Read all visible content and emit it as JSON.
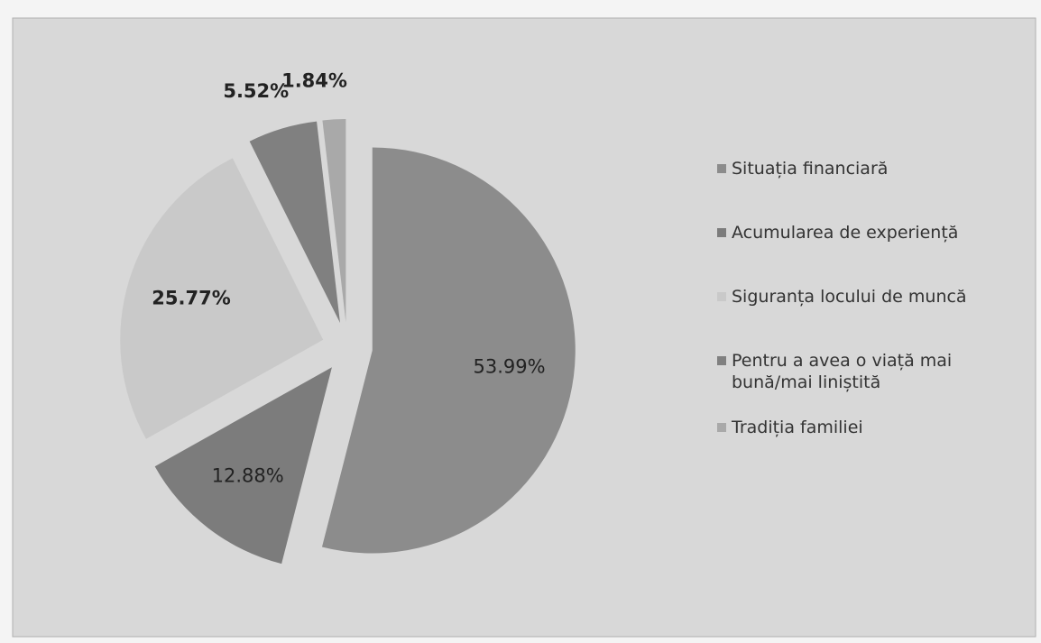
{
  "chart_data": {
    "type": "pie",
    "categories": [
      "Situația financiară",
      "Acumularea de experiență",
      "Siguranța locului de muncă",
      "Pentru a avea o viață mai bună/mai liniștită",
      "Tradiția familiei"
    ],
    "values": [
      53.99,
      12.88,
      25.77,
      5.52,
      1.84
    ],
    "value_labels": [
      "53.99%",
      "12.88%",
      "25.77%",
      "5.52%",
      "1.84%"
    ],
    "colors": [
      "#8c8c8c",
      "#7c7c7c",
      "#c9c9c9",
      "#808080",
      "#a9a9a9"
    ],
    "legend": "right"
  }
}
